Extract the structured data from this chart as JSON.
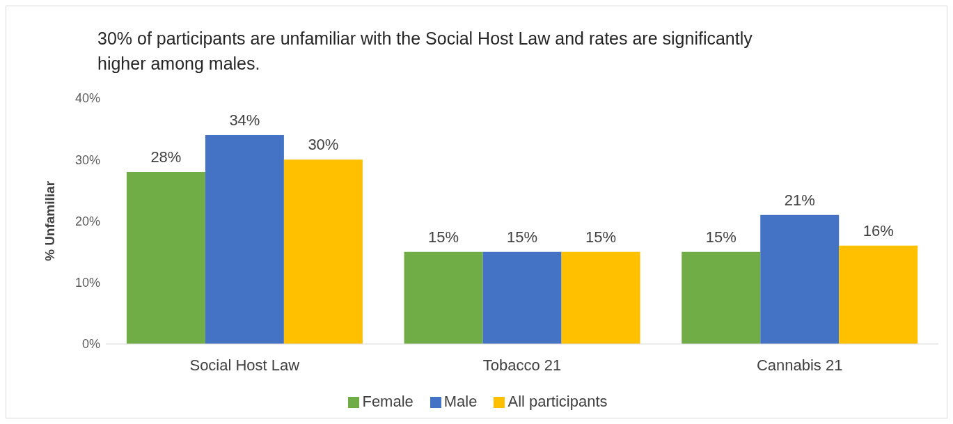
{
  "chart_data": {
    "type": "bar",
    "title": "30% of participants are unfamiliar with the Social Host Law and rates are significantly higher among males.",
    "ylabel": "% Unfamiliar",
    "categories": [
      "Social Host Law",
      "Tobacco 21",
      "Cannabis 21"
    ],
    "series": [
      {
        "name": "Female",
        "color": "#70ad47",
        "values": [
          28,
          15,
          15
        ],
        "value_labels": [
          "28%",
          "15%",
          "15%"
        ]
      },
      {
        "name": "Male",
        "color": "#4472c4",
        "values": [
          34,
          15,
          21
        ],
        "value_labels": [
          "34%",
          "15%",
          "21%"
        ]
      },
      {
        "name": "All participants",
        "color": "#ffc000",
        "values": [
          30,
          15,
          16
        ],
        "value_labels": [
          "30%",
          "15%",
          "16%"
        ]
      }
    ],
    "ylim": [
      0,
      40
    ],
    "yticks": [
      {
        "value": 0,
        "label": "0%"
      },
      {
        "value": 10,
        "label": "10%"
      },
      {
        "value": 20,
        "label": "20%"
      },
      {
        "value": 30,
        "label": "30%"
      },
      {
        "value": 40,
        "label": "40%"
      }
    ],
    "grid": false,
    "legend": "bottom"
  }
}
